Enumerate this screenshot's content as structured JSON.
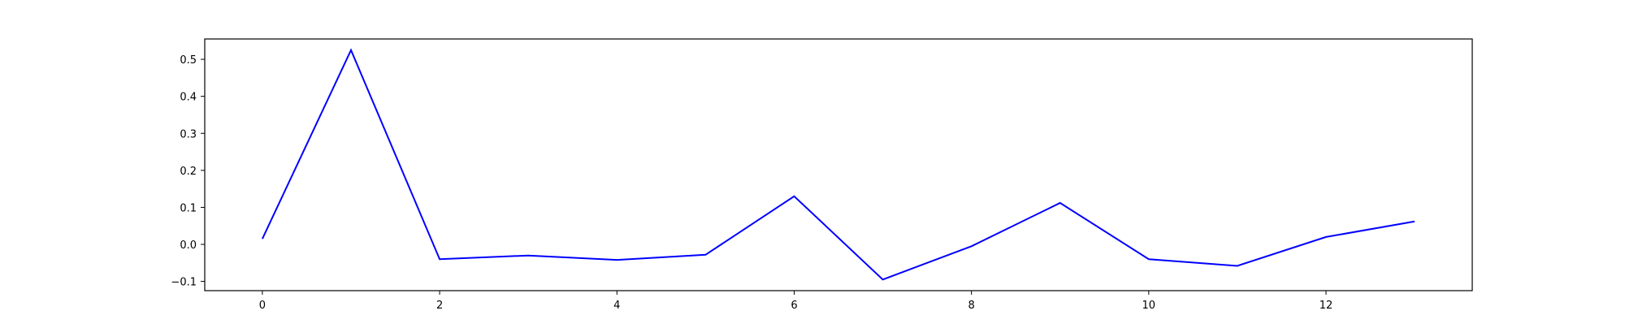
{
  "chart_data": {
    "type": "line",
    "title": "",
    "xlabel": "",
    "ylabel": "",
    "x": [
      0,
      1,
      2,
      3,
      4,
      5,
      6,
      7,
      8,
      9,
      10,
      11,
      12,
      13
    ],
    "series": [
      {
        "values": [
          0.015,
          0.525,
          -0.04,
          -0.03,
          -0.042,
          -0.028,
          0.13,
          -0.095,
          -0.005,
          0.112,
          -0.04,
          -0.058,
          0.02,
          0.062
        ],
        "color": "#0000ff"
      }
    ],
    "xlim": [
      -0.65,
      13.65
    ],
    "ylim": [
      -0.125,
      0.555
    ],
    "xticks": [
      0,
      2,
      4,
      6,
      8,
      10,
      12
    ],
    "xtick_labels": [
      "0",
      "2",
      "4",
      "6",
      "8",
      "10",
      "12"
    ],
    "yticks": [
      -0.1,
      0.0,
      0.1,
      0.2,
      0.3,
      0.4,
      0.5
    ],
    "ytick_labels": [
      "−0.1",
      "0.0",
      "0.1",
      "0.2",
      "0.3",
      "0.4",
      "0.5"
    ],
    "grid": false,
    "legend": "none"
  }
}
